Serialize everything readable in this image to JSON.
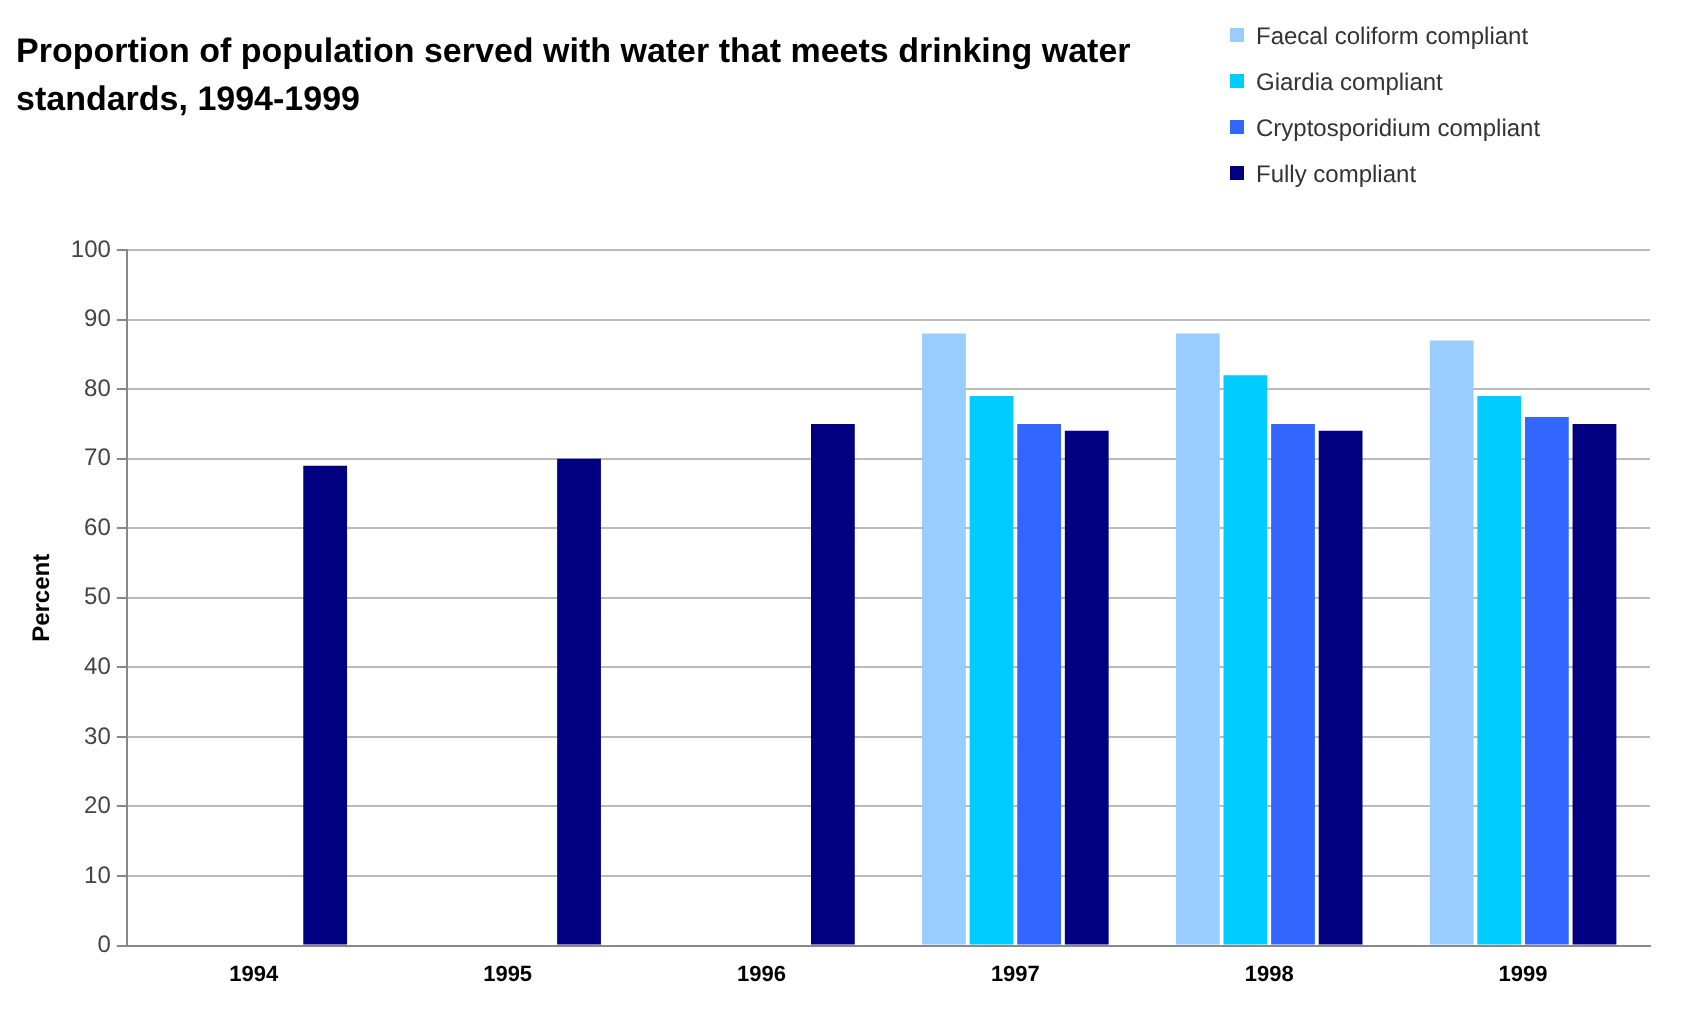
{
  "chart_data": {
    "type": "bar",
    "title": "Proportion of population served with water that meets drinking water standards, 1994-1999",
    "ylabel": "Percent",
    "categories": [
      "1994",
      "1995",
      "1996",
      "1997",
      "1998",
      "1999"
    ],
    "series": [
      {
        "name": "Faecal coliform compliant",
        "color": "#99ccff",
        "values": [
          null,
          null,
          null,
          88,
          88,
          87
        ]
      },
      {
        "name": "Giardia compliant",
        "color": "#00ccff",
        "values": [
          null,
          null,
          null,
          79,
          82,
          79
        ]
      },
      {
        "name": "Cryptosporidium compliant",
        "color": "#3366ff",
        "values": [
          null,
          null,
          null,
          75,
          75,
          76
        ]
      },
      {
        "name": "Fully compliant",
        "color": "#000080",
        "values": [
          69,
          70,
          75,
          74,
          74,
          75
        ]
      }
    ],
    "ylim": [
      0,
      100
    ],
    "yticks": [
      0,
      10,
      20,
      30,
      40,
      50,
      60,
      70,
      80,
      90,
      100
    ],
    "grid": "y",
    "legend": "top right"
  }
}
